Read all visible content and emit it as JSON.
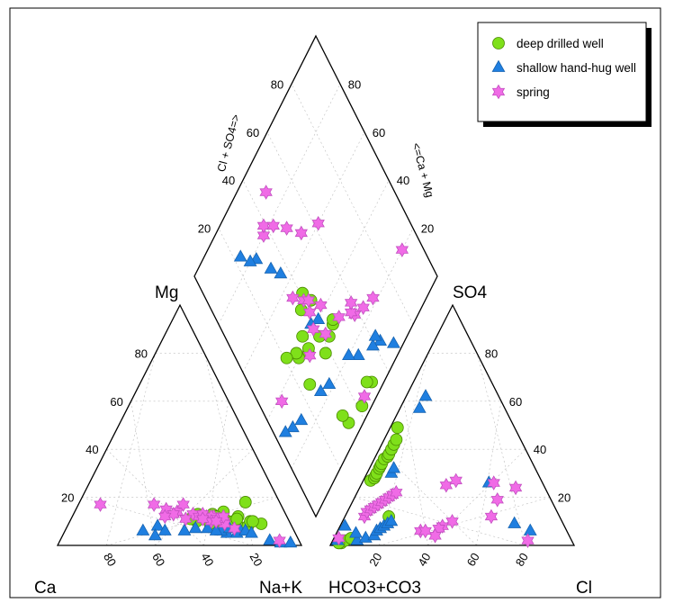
{
  "chart_data": {
    "type": "scatter",
    "subtype": "piper-diagram",
    "legend_position": "top-right",
    "corner_labels": {
      "cation_left": "Ca",
      "cation_right": "Na+K",
      "cation_top": "Mg",
      "anion_left": "HCO3+CO3",
      "anion_right": "Cl",
      "anion_top": "SO4"
    },
    "diamond_axis_labels": {
      "left": "Cl + SO4=>",
      "right": "<=Ca + Mg"
    },
    "tick_values": [
      "20",
      "40",
      "60",
      "80"
    ],
    "series": [
      {
        "name": "deep drilled well",
        "marker": "circle",
        "color": "#7fe01a",
        "points": [
          {
            "ca": 28,
            "mg": 10,
            "na_k": 62,
            "hco3": 70,
            "so4": 27,
            "cl": 3
          },
          {
            "ca": 32,
            "mg": 11,
            "na_k": 57,
            "hco3": 68,
            "so4": 28,
            "cl": 4
          },
          {
            "ca": 35,
            "mg": 12,
            "na_k": 53,
            "hco3": 67,
            "so4": 29,
            "cl": 4
          },
          {
            "ca": 38,
            "mg": 10,
            "na_k": 52,
            "hco3": 66,
            "so4": 30,
            "cl": 4
          },
          {
            "ca": 25,
            "mg": 14,
            "na_k": 61,
            "hco3": 64,
            "so4": 32,
            "cl": 4
          },
          {
            "ca": 22,
            "mg": 9,
            "na_k": 69,
            "hco3": 63,
            "so4": 33,
            "cl": 4
          },
          {
            "ca": 20,
            "mg": 12,
            "na_k": 68,
            "hco3": 62,
            "so4": 34,
            "cl": 4
          },
          {
            "ca": 18,
            "mg": 8,
            "na_k": 74,
            "hco3": 60,
            "so4": 36,
            "cl": 4
          },
          {
            "ca": 16,
            "mg": 10,
            "na_k": 74,
            "hco3": 58,
            "so4": 37,
            "cl": 5
          },
          {
            "ca": 14,
            "mg": 18,
            "na_k": 68,
            "hco3": 57,
            "so4": 38,
            "cl": 5
          },
          {
            "ca": 12,
            "mg": 9,
            "na_k": 79,
            "hco3": 55,
            "so4": 40,
            "cl": 5
          },
          {
            "ca": 30,
            "mg": 13,
            "na_k": 57,
            "hco3": 53,
            "so4": 42,
            "cl": 5
          },
          {
            "ca": 26,
            "mg": 11,
            "na_k": 63,
            "hco3": 51,
            "so4": 44,
            "cl": 5
          },
          {
            "ca": 23,
            "mg": 10,
            "na_k": 67,
            "hco3": 94,
            "so4": 2,
            "cl": 4
          },
          {
            "ca": 40,
            "mg": 11,
            "na_k": 49,
            "hco3": 95,
            "so4": 1,
            "cl": 4
          },
          {
            "ca": 36,
            "mg": 13,
            "na_k": 51,
            "hco3": 93,
            "so4": 2,
            "cl": 5
          },
          {
            "ca": 33,
            "mg": 9,
            "na_k": 58,
            "hco3": 96,
            "so4": 1,
            "cl": 3
          },
          {
            "ca": 21,
            "mg": 11,
            "na_k": 68,
            "hco3": 90,
            "so4": 3,
            "cl": 7
          },
          {
            "ca": 15,
            "mg": 10,
            "na_k": 75,
            "hco3": 70,
            "so4": 12,
            "cl": 18
          },
          {
            "ca": 29,
            "mg": 12,
            "na_k": 59,
            "hco3": 48,
            "so4": 49,
            "cl": 3
          }
        ]
      },
      {
        "name": "shallow hand-hug well",
        "marker": "triangle",
        "color": "#1f7fe0",
        "points": [
          {
            "ca": 62,
            "mg": 6,
            "na_k": 32,
            "hco3": 96,
            "so4": 2,
            "cl": 2
          },
          {
            "ca": 55,
            "mg": 8,
            "na_k": 37,
            "hco3": 90,
            "so4": 8,
            "cl": 2
          },
          {
            "ca": 53,
            "mg": 6,
            "na_k": 41,
            "hco3": 88,
            "so4": 2,
            "cl": 10
          },
          {
            "ca": 58,
            "mg": 4,
            "na_k": 38,
            "hco3": 87,
            "so4": 5,
            "cl": 8
          },
          {
            "ca": 45,
            "mg": 6,
            "na_k": 49,
            "hco3": 84,
            "so4": 3,
            "cl": 13
          },
          {
            "ca": 40,
            "mg": 7,
            "na_k": 53,
            "hco3": 80,
            "so4": 4,
            "cl": 16
          },
          {
            "ca": 28,
            "mg": 5,
            "na_k": 67,
            "hco3": 78,
            "so4": 6,
            "cl": 16
          },
          {
            "ca": 22,
            "mg": 6,
            "na_k": 72,
            "hco3": 76,
            "so4": 7,
            "cl": 17
          },
          {
            "ca": 12,
            "mg": 2,
            "na_k": 86,
            "hco3": 74,
            "so4": 8,
            "cl": 18
          },
          {
            "ca": 8,
            "mg": 1,
            "na_k": 91,
            "hco3": 72,
            "so4": 9,
            "cl": 19
          },
          {
            "ca": 4,
            "mg": 1,
            "na_k": 95,
            "hco3": 70,
            "so4": 10,
            "cl": 20
          },
          {
            "ca": 30,
            "mg": 6,
            "na_k": 64,
            "hco3": 35,
            "so4": 57,
            "cl": 8
          },
          {
            "ca": 26,
            "mg": 7,
            "na_k": 67,
            "hco3": 30,
            "so4": 62,
            "cl": 8
          },
          {
            "ca": 24,
            "mg": 5,
            "na_k": 71,
            "hco3": 22,
            "so4": 26,
            "cl": 52
          },
          {
            "ca": 20,
            "mg": 6,
            "na_k": 74,
            "hco3": 20,
            "so4": 9,
            "cl": 71
          },
          {
            "ca": 18,
            "mg": 5,
            "na_k": 77,
            "hco3": 15,
            "so4": 6,
            "cl": 79
          },
          {
            "ca": 35,
            "mg": 7,
            "na_k": 58,
            "hco3": 60,
            "so4": 30,
            "cl": 10
          },
          {
            "ca": 32,
            "mg": 6,
            "na_k": 62,
            "hco3": 58,
            "so4": 32,
            "cl": 10
          }
        ]
      },
      {
        "name": "spring",
        "marker": "star",
        "color": "#f06be6",
        "points": [
          {
            "ca": 74,
            "mg": 17,
            "na_k": 9,
            "hco3": 80,
            "so4": 12,
            "cl": 8
          },
          {
            "ca": 52,
            "mg": 17,
            "na_k": 31,
            "hco3": 78,
            "so4": 14,
            "cl": 8
          },
          {
            "ca": 48,
            "mg": 15,
            "na_k": 37,
            "hco3": 76,
            "so4": 15,
            "cl": 9
          },
          {
            "ca": 44,
            "mg": 14,
            "na_k": 42,
            "hco3": 74,
            "so4": 16,
            "cl": 10
          },
          {
            "ca": 40,
            "mg": 17,
            "na_k": 43,
            "hco3": 72,
            "so4": 17,
            "cl": 11
          },
          {
            "ca": 46,
            "mg": 13,
            "na_k": 41,
            "hco3": 70,
            "so4": 18,
            "cl": 12
          },
          {
            "ca": 38,
            "mg": 13,
            "na_k": 49,
            "hco3": 68,
            "so4": 19,
            "cl": 13
          },
          {
            "ca": 30,
            "mg": 12,
            "na_k": 58,
            "hco3": 66,
            "so4": 20,
            "cl": 14
          },
          {
            "ca": 24,
            "mg": 7,
            "na_k": 69,
            "hco3": 64,
            "so4": 21,
            "cl": 15
          },
          {
            "ca": 8,
            "mg": 2,
            "na_k": 90,
            "hco3": 62,
            "so4": 22,
            "cl": 16
          },
          {
            "ca": 50,
            "mg": 12,
            "na_k": 38,
            "hco3": 40,
            "so4": 25,
            "cl": 35
          },
          {
            "ca": 42,
            "mg": 11,
            "na_k": 47,
            "hco3": 35,
            "so4": 27,
            "cl": 38
          },
          {
            "ca": 36,
            "mg": 12,
            "na_k": 52,
            "hco3": 28,
            "so4": 12,
            "cl": 60
          },
          {
            "ca": 33,
            "mg": 12,
            "na_k": 55,
            "hco3": 95,
            "so4": 3,
            "cl": 2
          },
          {
            "ca": 27,
            "mg": 10,
            "na_k": 63,
            "hco3": 20,
            "so4": 26,
            "cl": 54
          },
          {
            "ca": 28,
            "mg": 11,
            "na_k": 61,
            "hco3": 18,
            "so4": 2,
            "cl": 80
          },
          {
            "ca": 31,
            "mg": 12,
            "na_k": 57,
            "hco3": 22,
            "so4": 19,
            "cl": 59
          },
          {
            "ca": 34,
            "mg": 13,
            "na_k": 53,
            "hco3": 12,
            "so4": 24,
            "cl": 64
          },
          {
            "ca": 27,
            "mg": 9,
            "na_k": 64,
            "hco3": 45,
            "so4": 10,
            "cl": 45
          },
          {
            "ca": 29,
            "mg": 11,
            "na_k": 60,
            "hco3": 50,
            "so4": 8,
            "cl": 42
          },
          {
            "ca": 32,
            "mg": 10,
            "na_k": 58,
            "hco3": 52,
            "so4": 7,
            "cl": 41
          },
          {
            "ca": 26,
            "mg": 12,
            "na_k": 62,
            "hco3": 60,
            "so4": 6,
            "cl": 34
          },
          {
            "ca": 30,
            "mg": 10,
            "na_k": 60,
            "hco3": 55,
            "so4": 4,
            "cl": 41
          },
          {
            "ca": 35,
            "mg": 11,
            "na_k": 54,
            "hco3": 58,
            "so4": 6,
            "cl": 36
          }
        ]
      }
    ]
  }
}
